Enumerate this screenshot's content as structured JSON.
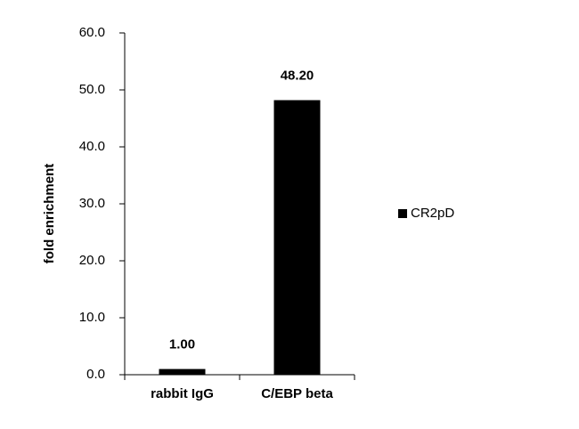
{
  "chart_data": {
    "type": "bar",
    "y_label": "fold enrichment",
    "categories": [
      "rabbit IgG",
      "C/EBP beta"
    ],
    "series": [
      {
        "name": "CR2pD",
        "color": "#000000",
        "values": [
          1.0,
          48.2
        ],
        "value_labels": [
          "1.00",
          "48.20"
        ]
      }
    ],
    "ylim": [
      0,
      60
    ],
    "yticks": [
      {
        "value": 0,
        "label": "0.0"
      },
      {
        "value": 10,
        "label": "10.0"
      },
      {
        "value": 20,
        "label": "20.0"
      },
      {
        "value": 30,
        "label": "30.0"
      },
      {
        "value": 40,
        "label": "40.0"
      },
      {
        "value": 50,
        "label": "50.0"
      },
      {
        "value": 60,
        "label": "60.0"
      }
    ],
    "legend": "right"
  }
}
